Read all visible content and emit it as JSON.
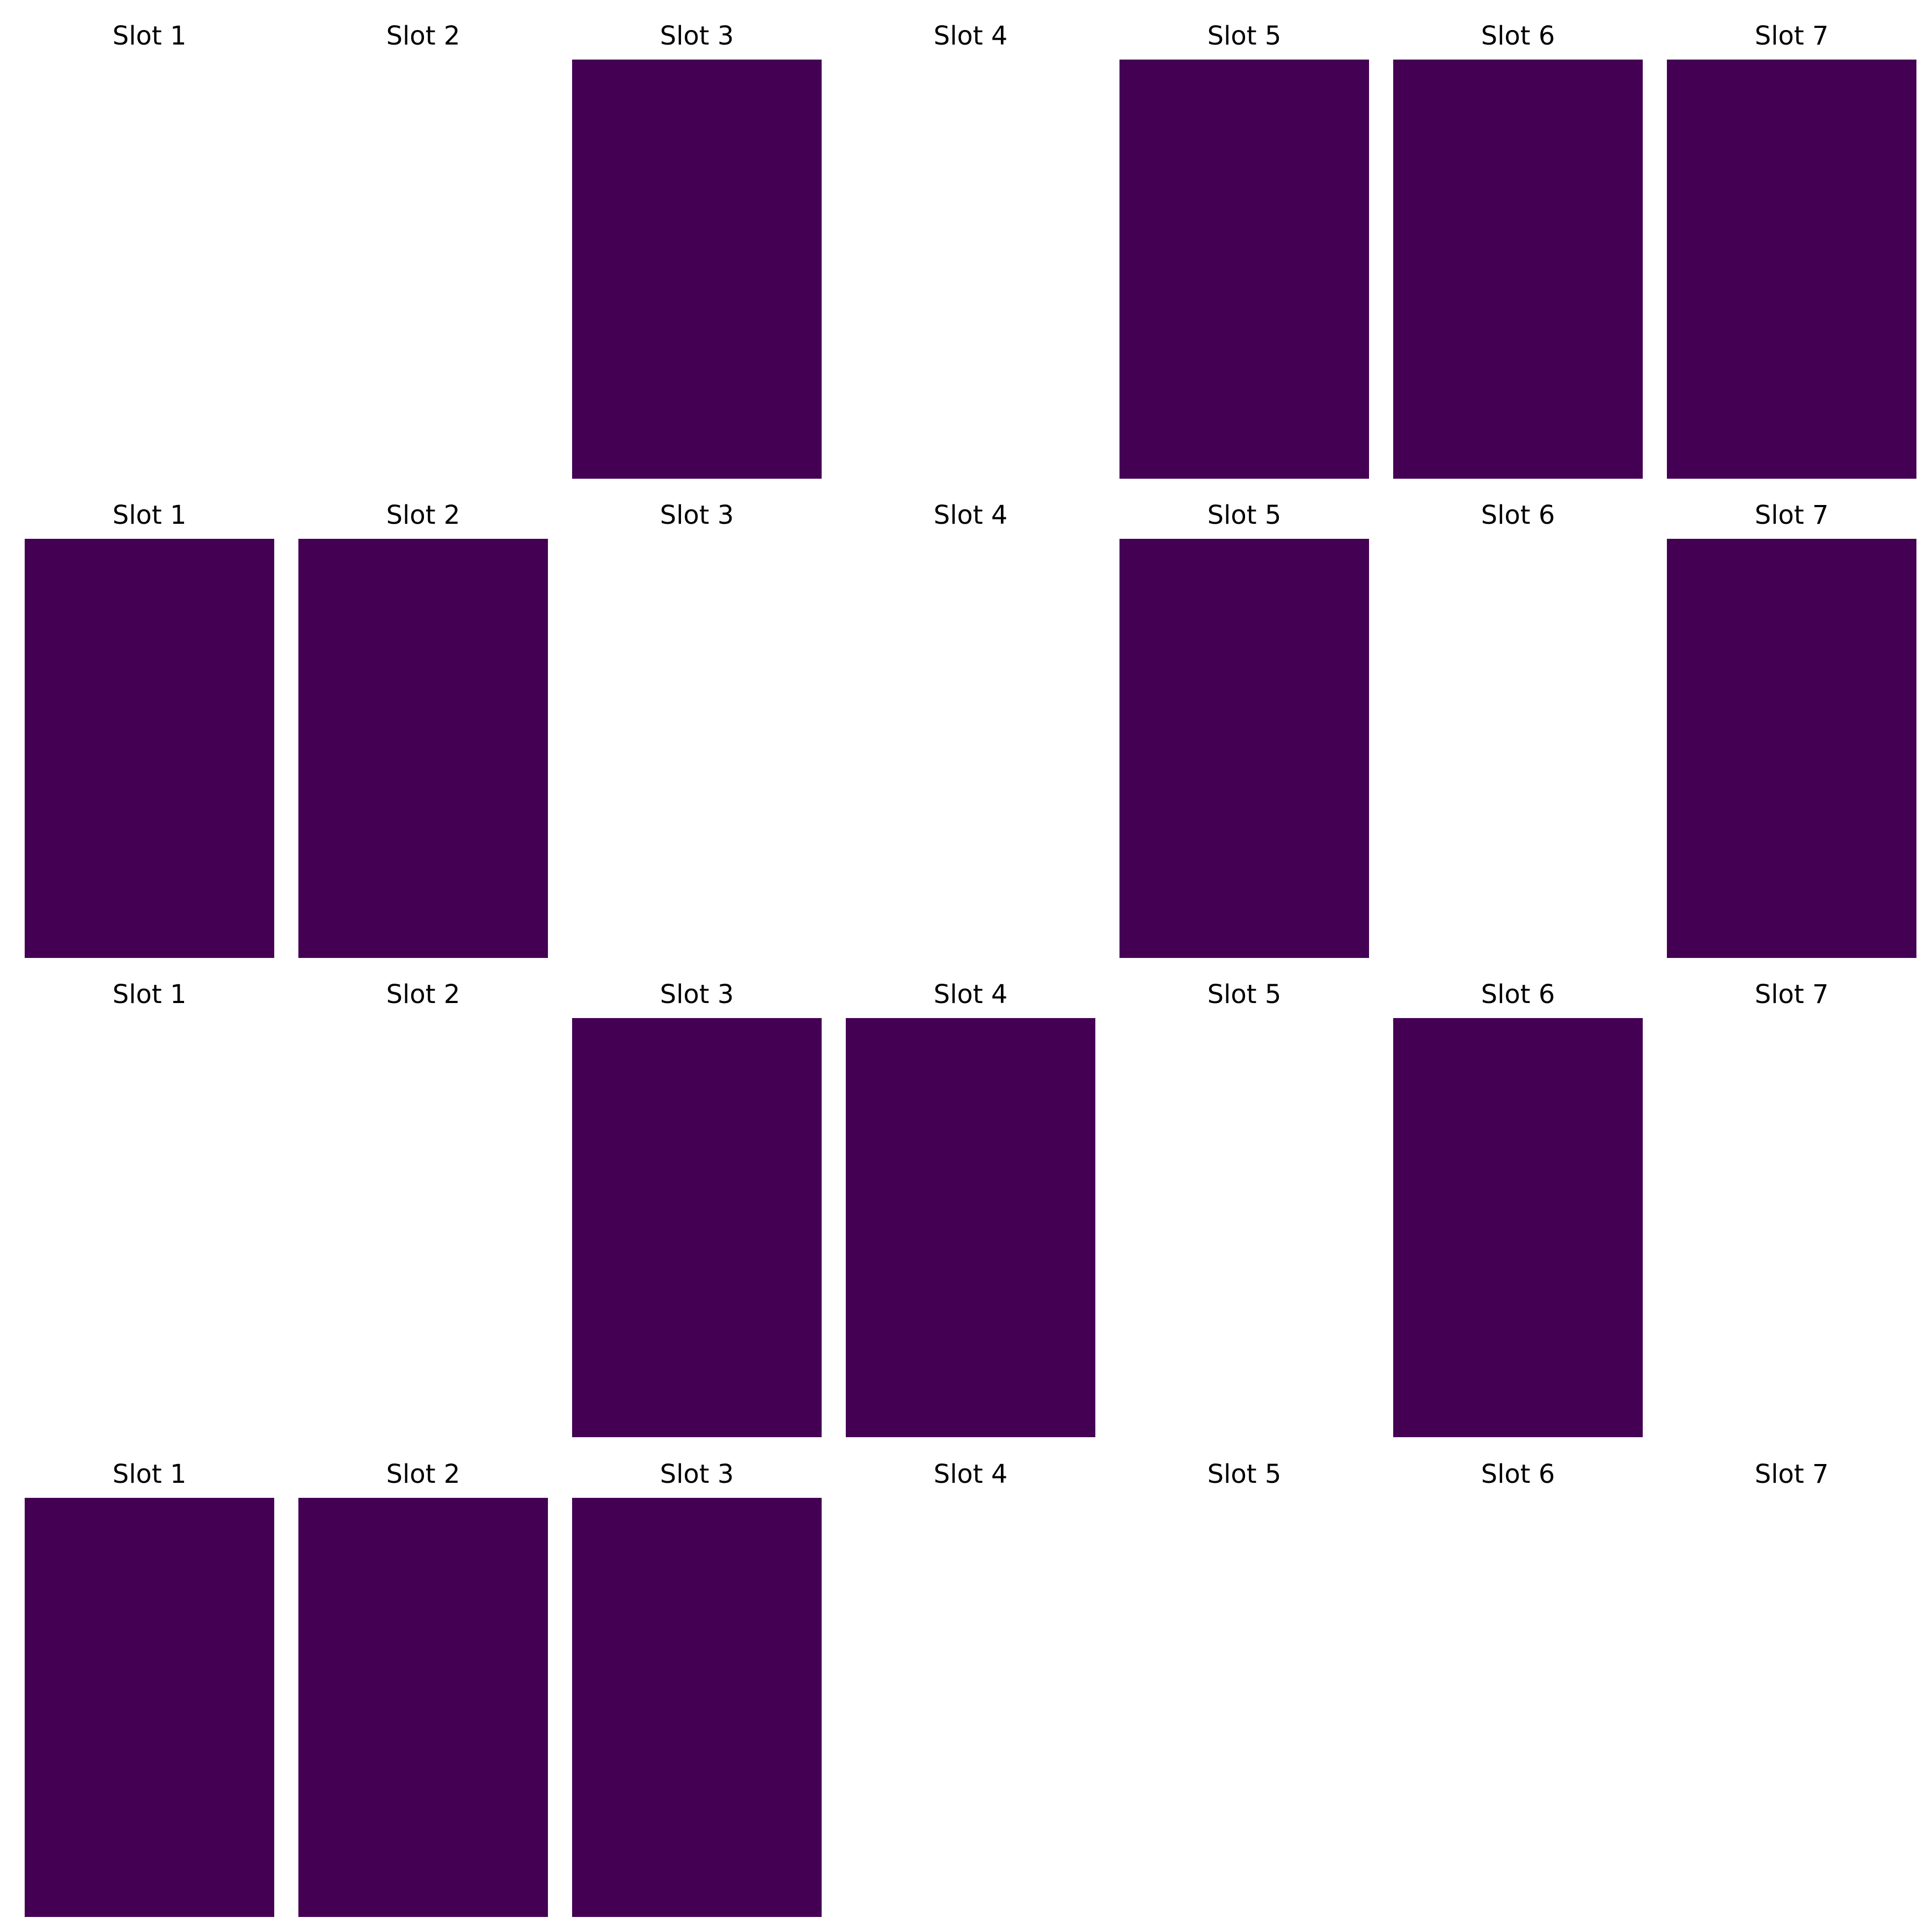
{
  "colors": {
    "filled": "#440154",
    "empty": "#ffffff",
    "label": "#000000"
  },
  "rows": [
    {
      "slots": [
        {
          "label": "Slot 1",
          "filled": false
        },
        {
          "label": "Slot 2",
          "filled": false
        },
        {
          "label": "Slot 3",
          "filled": true
        },
        {
          "label": "Slot 4",
          "filled": false
        },
        {
          "label": "Slot 5",
          "filled": true
        },
        {
          "label": "Slot 6",
          "filled": true
        },
        {
          "label": "Slot 7",
          "filled": true
        }
      ]
    },
    {
      "slots": [
        {
          "label": "Slot 1",
          "filled": true
        },
        {
          "label": "Slot 2",
          "filled": true
        },
        {
          "label": "Slot 3",
          "filled": false
        },
        {
          "label": "Slot 4",
          "filled": false
        },
        {
          "label": "Slot 5",
          "filled": true
        },
        {
          "label": "Slot 6",
          "filled": false
        },
        {
          "label": "Slot 7",
          "filled": true
        }
      ]
    },
    {
      "slots": [
        {
          "label": "Slot 1",
          "filled": false
        },
        {
          "label": "Slot 2",
          "filled": false
        },
        {
          "label": "Slot 3",
          "filled": true
        },
        {
          "label": "Slot 4",
          "filled": true
        },
        {
          "label": "Slot 5",
          "filled": false
        },
        {
          "label": "Slot 6",
          "filled": true
        },
        {
          "label": "Slot 7",
          "filled": false
        }
      ]
    },
    {
      "slots": [
        {
          "label": "Slot 1",
          "filled": true
        },
        {
          "label": "Slot 2",
          "filled": true
        },
        {
          "label": "Slot 3",
          "filled": true
        },
        {
          "label": "Slot 4",
          "filled": false
        },
        {
          "label": "Slot 5",
          "filled": false
        },
        {
          "label": "Slot 6",
          "filled": false
        },
        {
          "label": "Slot 7",
          "filled": false
        }
      ]
    }
  ]
}
